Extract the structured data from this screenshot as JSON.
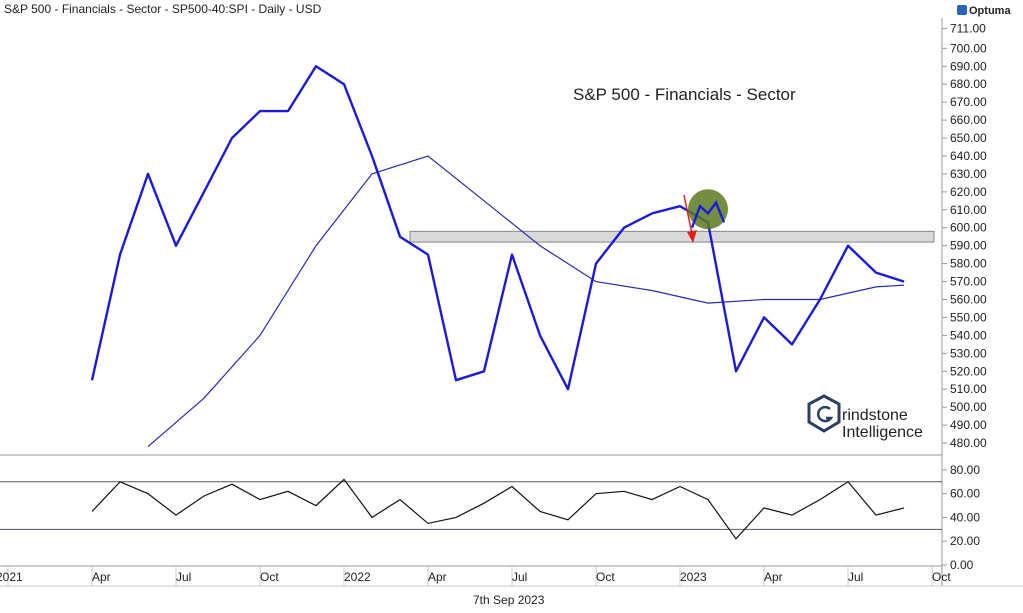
{
  "header": {
    "title": "S&P 500 - Financials - Sector - SP500-40:SPI - Daily - USD",
    "brand": "Optuma"
  },
  "footer": {
    "date_label": "7th Sep 2023"
  },
  "colors": {
    "price_line": "#1a1adc",
    "moving_average": "#2a2ab0",
    "rsi_line": "#111111",
    "resistance_band": "#d9d9d9",
    "highlight_circle": "#5a7a1e",
    "arrow": "#e02020"
  },
  "chart_data": [
    {
      "type": "line",
      "title": "S&P 500 - Financials - Sector",
      "ylim": [
        475,
        713
      ],
      "yticks": [
        "711.00",
        "700.00",
        "690.00",
        "680.00",
        "670.00",
        "660.00",
        "650.00",
        "640.00",
        "630.00",
        "620.00",
        "610.00",
        "600.00",
        "590.00",
        "580.00",
        "570.00",
        "560.00",
        "550.00",
        "540.00",
        "530.00",
        "520.00",
        "510.00",
        "500.00",
        "490.00",
        "480.00"
      ],
      "xticks": [
        "2021",
        "Apr",
        "Jul",
        "Oct",
        "2022",
        "Apr",
        "Jul",
        "Oct",
        "2023",
        "Apr",
        "Jul",
        "Oct"
      ],
      "resistance_zone": [
        592,
        598
      ],
      "series": [
        {
          "x": [
            "2021-04",
            "2021-05",
            "2021-06",
            "2021-07",
            "2021-08",
            "2021-09",
            "2021-10",
            "2021-11",
            "2021-12",
            "2022-01",
            "2022-02",
            "2022-03",
            "2022-04",
            "2022-05",
            "2022-06",
            "2022-07",
            "2022-08",
            "2022-09",
            "2022-10",
            "2022-11",
            "2022-12",
            "2023-01",
            "2023-02",
            "2023-03",
            "2023-04",
            "2023-05",
            "2023-06",
            "2023-07",
            "2023-08",
            "2023-09"
          ],
          "y": [
            515,
            585,
            630,
            590,
            620,
            650,
            665,
            665,
            690,
            680,
            640,
            595,
            585,
            515,
            520,
            585,
            540,
            510,
            580,
            600,
            608,
            612,
            603,
            520,
            550,
            535,
            560,
            590,
            575,
            570
          ]
        },
        {
          "x": [
            "2021-06",
            "2021-08",
            "2021-10",
            "2021-12",
            "2022-02",
            "2022-04",
            "2022-06",
            "2022-08",
            "2022-10",
            "2022-12",
            "2023-02",
            "2023-04",
            "2023-06",
            "2023-08",
            "2023-09"
          ],
          "y": [
            478,
            505,
            540,
            590,
            630,
            640,
            615,
            590,
            570,
            565,
            558,
            560,
            560,
            567,
            568
          ]
        }
      ]
    },
    {
      "type": "line",
      "ylim": [
        0,
        90
      ],
      "yticks": [
        "80.00",
        "60.00",
        "40.00",
        "20.00",
        "0.00"
      ],
      "reference_lines": [
        70,
        30
      ],
      "series": [
        {
          "x": [
            "2021-04",
            "2021-05",
            "2021-06",
            "2021-07",
            "2021-08",
            "2021-09",
            "2021-10",
            "2021-11",
            "2021-12",
            "2022-01",
            "2022-02",
            "2022-03",
            "2022-04",
            "2022-05",
            "2022-06",
            "2022-07",
            "2022-08",
            "2022-09",
            "2022-10",
            "2022-11",
            "2022-12",
            "2023-01",
            "2023-02",
            "2023-03",
            "2023-04",
            "2023-05",
            "2023-06",
            "2023-07",
            "2023-08",
            "2023-09"
          ],
          "y": [
            45,
            70,
            60,
            42,
            58,
            68,
            55,
            62,
            50,
            72,
            40,
            55,
            35,
            40,
            52,
            66,
            45,
            38,
            60,
            62,
            55,
            66,
            55,
            22,
            48,
            42,
            55,
            70,
            42,
            48
          ]
        }
      ]
    }
  ]
}
